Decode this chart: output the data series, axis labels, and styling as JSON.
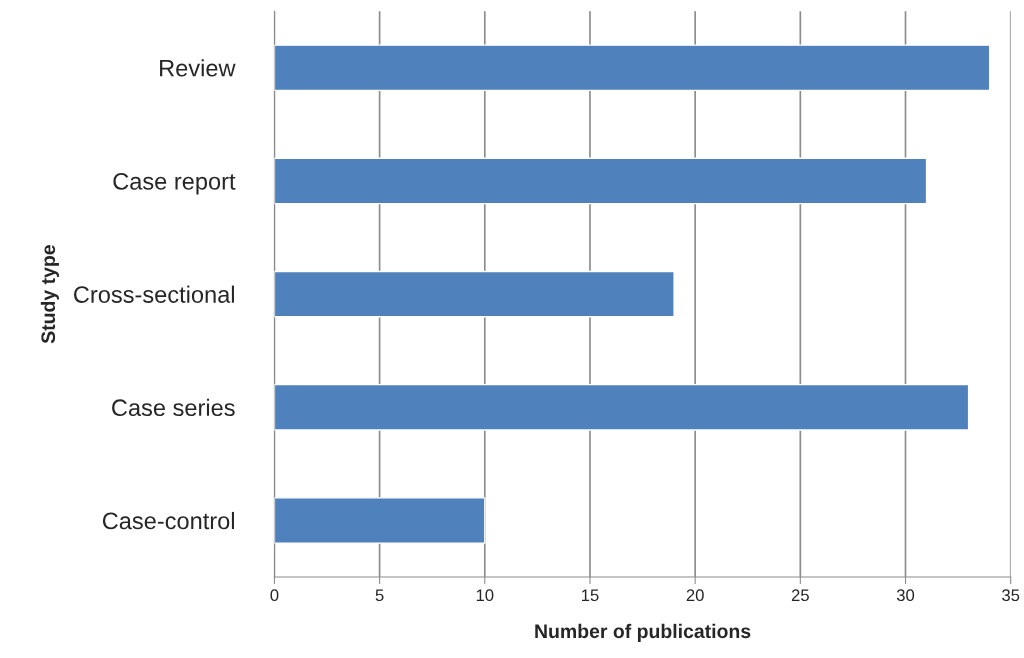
{
  "chart_data": {
    "type": "bar",
    "orientation": "horizontal",
    "xlabel": "Number of publications",
    "ylabel": "Study type",
    "categories": [
      "Review",
      "Case report",
      "Cross-sectional",
      "Case series",
      "Case-control"
    ],
    "values": [
      34,
      31,
      19,
      33,
      10
    ],
    "color": "#4f81bd",
    "xlim": [
      0,
      35
    ],
    "xticks": [
      0,
      5,
      10,
      15,
      20,
      25,
      30,
      35
    ],
    "grid": "x",
    "legend": false
  }
}
